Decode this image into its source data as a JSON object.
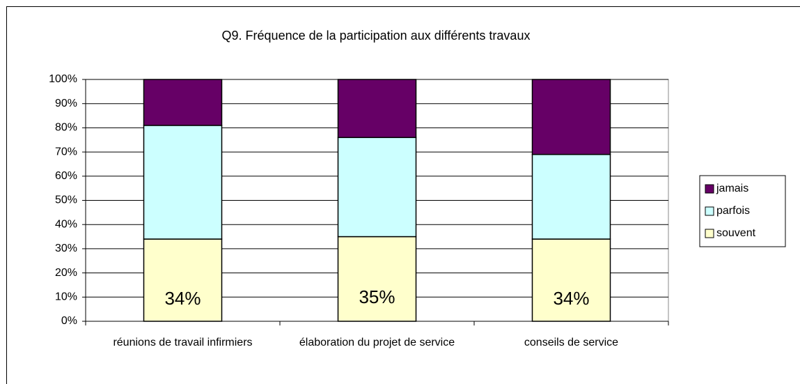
{
  "chart_data": {
    "type": "stacked_bar",
    "title": "Q9. Fréquence de la participation aux différents travaux",
    "categories": [
      "réunions de travail infirmiers",
      "élaboration du projet de service",
      "conseils de service"
    ],
    "series": [
      {
        "name": "souvent",
        "color": "#ffffcc",
        "values": [
          34,
          35,
          34
        ],
        "value_labels": [
          "34%",
          "35%",
          "34%"
        ]
      },
      {
        "name": "parfois",
        "color": "#ccffff",
        "values": [
          47,
          41,
          35
        ]
      },
      {
        "name": "jamais",
        "color": "#660066",
        "values": [
          19,
          24,
          31
        ]
      }
    ],
    "ylim": [
      0,
      100
    ],
    "yticks": [
      {
        "value": 0,
        "label": "0%"
      },
      {
        "value": 10,
        "label": "10%"
      },
      {
        "value": 20,
        "label": "20%"
      },
      {
        "value": 30,
        "label": "30%"
      },
      {
        "value": 40,
        "label": "40%"
      },
      {
        "value": 50,
        "label": "50%"
      },
      {
        "value": 60,
        "label": "60%"
      },
      {
        "value": 70,
        "label": "70%"
      },
      {
        "value": 80,
        "label": "80%"
      },
      {
        "value": 90,
        "label": "90%"
      },
      {
        "value": 100,
        "label": "100%"
      }
    ],
    "grid": true,
    "legend": "right"
  }
}
